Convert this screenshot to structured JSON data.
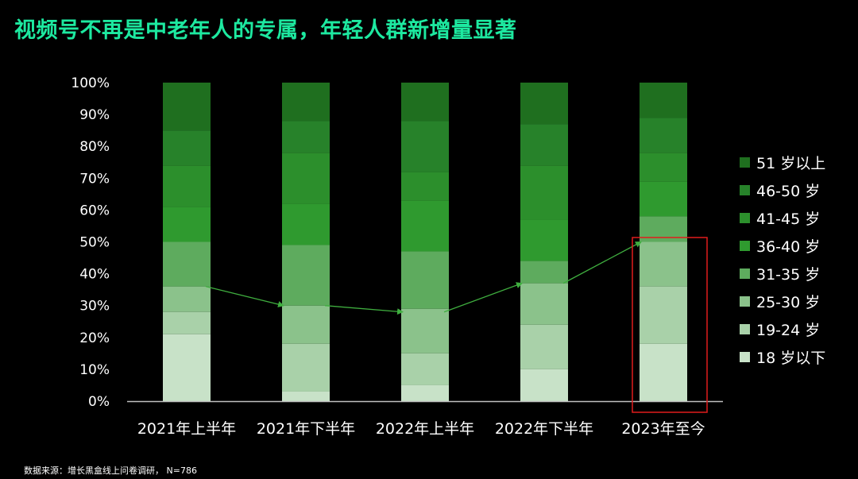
{
  "title": "视频号不再是中老年人的专属，年轻人群新增量显著",
  "source": "数据来源：增长黑盒线上问卷调研， N=786",
  "colors": {
    "title": "#1de9a0",
    "axis": "#bfbfbf",
    "tick_label": "#ffffff",
    "trend_line": "#3fae3f",
    "highlight_box": "#e01c1c"
  },
  "chart_data": {
    "type": "bar",
    "stacked": true,
    "percent": true,
    "categories": [
      "2021年上半年",
      "2021年下半年",
      "2022年上半年",
      "2022年下半年",
      "2023年至今"
    ],
    "y_ticks": [
      "0%",
      "10%",
      "20%",
      "30%",
      "40%",
      "50%",
      "60%",
      "70%",
      "80%",
      "90%",
      "100%"
    ],
    "ylim": [
      0,
      100
    ],
    "legend_position": "right",
    "series": [
      {
        "name": "18 岁以下",
        "color": "#c8e2c8",
        "values": [
          21,
          3,
          5,
          10,
          18
        ]
      },
      {
        "name": "19-24 岁",
        "color": "#a9d1a9",
        "values": [
          7,
          15,
          10,
          14,
          18
        ]
      },
      {
        "name": "25-30 岁",
        "color": "#8bc28b",
        "values": [
          8,
          12,
          14,
          13,
          14
        ]
      },
      {
        "name": "31-35 岁",
        "color": "#5eab5e",
        "values": [
          14,
          19,
          18,
          7,
          8
        ]
      },
      {
        "name": "36-40 岁",
        "color": "#2f9a2f",
        "values": [
          11,
          13,
          16,
          13,
          11
        ]
      },
      {
        "name": "41-45 岁",
        "color": "#2c8f2c",
        "values": [
          13,
          16,
          9,
          17,
          9
        ]
      },
      {
        "name": "46-50 岁",
        "color": "#27822a",
        "values": [
          11,
          10,
          16,
          13,
          11
        ]
      },
      {
        "name": "51 岁以上",
        "color": "#1f6f1f",
        "values": [
          15,
          12,
          12,
          13,
          11
        ]
      }
    ],
    "trend_line_values": [
      36,
      30,
      28,
      37,
      50
    ],
    "highlight_category": "2023年至今"
  }
}
